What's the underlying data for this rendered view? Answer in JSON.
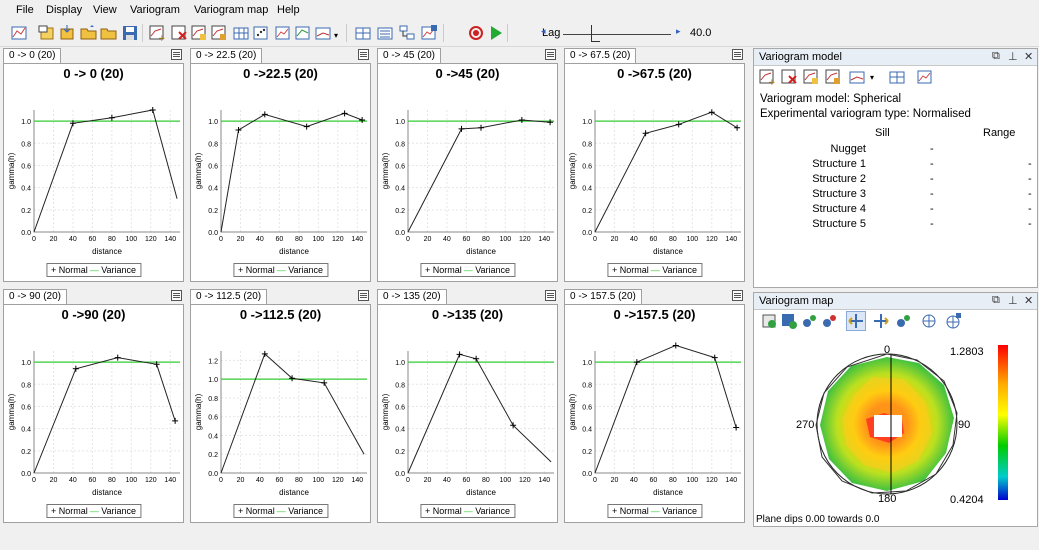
{
  "menu": [
    "File",
    "Display",
    "View",
    "Variogram",
    "Variogram map",
    "Help"
  ],
  "lag": {
    "label": "Lag",
    "value": "40.0"
  },
  "panels": [
    {
      "tab": "0 -> 0 (20)",
      "title": "0 -> 0 (20)",
      "ymax": 1.0,
      "yticks": [
        "0.0",
        "0.2",
        "0.4",
        "0.6",
        "0.8",
        "1.0"
      ],
      "points": [
        [
          40,
          0.98
        ],
        [
          80,
          1.03
        ],
        [
          122,
          1.1
        ]
      ],
      "line_end": [
        147,
        0.3
      ],
      "variance": 1.0
    },
    {
      "tab": "0 -> 22.5 (20)",
      "title": "0 ->22.5 (20)",
      "ymax": 1.0,
      "yticks": [
        "0.0",
        "0.2",
        "0.4",
        "0.6",
        "0.8",
        "1.0"
      ],
      "points": [
        [
          18,
          0.92
        ],
        [
          45,
          1.06
        ],
        [
          88,
          0.95
        ],
        [
          127,
          1.07
        ],
        [
          145,
          1.01
        ]
      ],
      "line_end": null,
      "variance": 1.0
    },
    {
      "tab": "0 -> 45 (20)",
      "title": "0 ->45 (20)",
      "ymax": 1.0,
      "yticks": [
        "0.0",
        "0.2",
        "0.4",
        "0.6",
        "0.8",
        "1.0"
      ],
      "points": [
        [
          55,
          0.93
        ],
        [
          75,
          0.94
        ],
        [
          117,
          1.01
        ],
        [
          146,
          0.99
        ]
      ],
      "line_end": null,
      "variance": 1.0
    },
    {
      "tab": "0 -> 67.5 (20)",
      "title": "0 ->67.5 (20)",
      "ymax": 1.0,
      "yticks": [
        "0.0",
        "0.2",
        "0.4",
        "0.6",
        "0.8",
        "1.0"
      ],
      "points": [
        [
          52,
          0.89
        ],
        [
          86,
          0.97
        ],
        [
          120,
          1.08
        ],
        [
          146,
          0.94
        ]
      ],
      "line_end": null,
      "variance": 1.0
    },
    {
      "tab": "0 -> 90 (20)",
      "title": "0 ->90 (20)",
      "ymax": 1.0,
      "yticks": [
        "0.0",
        "0.2",
        "0.4",
        "0.6",
        "0.8",
        "1.0"
      ],
      "points": [
        [
          43,
          0.94
        ],
        [
          86,
          1.04
        ],
        [
          126,
          0.98
        ],
        [
          145,
          0.47
        ]
      ],
      "line_end": null,
      "variance": 1.0
    },
    {
      "tab": "0 -> 112.5 (20)",
      "title": "0 ->112.5 (20)",
      "ymax": 1.2,
      "yticks": [
        "0.0",
        "0.2",
        "0.4",
        "0.6",
        "0.8",
        "1.0",
        "1.2"
      ],
      "points": [
        [
          45,
          1.27
        ],
        [
          73,
          1.01
        ],
        [
          106,
          0.96
        ]
      ],
      "line_end": [
        147,
        0.2
      ],
      "variance": 1.0
    },
    {
      "tab": "0 -> 135 (20)",
      "title": "0 ->135 (20)",
      "ymax": 1.0,
      "yticks": [
        "0.0",
        "0.2",
        "0.4",
        "0.6",
        "0.8",
        "1.0"
      ],
      "points": [
        [
          53,
          1.07
        ],
        [
          70,
          1.03
        ],
        [
          108,
          0.43
        ]
      ],
      "line_end": [
        147,
        0.1
      ],
      "variance": 1.0
    },
    {
      "tab": "0 -> 157.5 (20)",
      "title": "0 ->157.5 (20)",
      "ymax": 1.0,
      "yticks": [
        "0.0",
        "0.2",
        "0.4",
        "0.6",
        "0.8",
        "1.0"
      ],
      "points": [
        [
          43,
          1.0
        ],
        [
          83,
          1.15
        ],
        [
          123,
          1.04
        ],
        [
          145,
          0.41
        ]
      ],
      "line_end": null,
      "variance": 1.0
    }
  ],
  "chart_common": {
    "xlabel": "distance",
    "ylabel": "gamma(h)",
    "xticks": [
      "0",
      "20",
      "40",
      "60",
      "80",
      "100",
      "120",
      "140"
    ],
    "legend_normal": "Normal",
    "legend_variance": "Variance"
  },
  "variogram_model": {
    "title": "Variogram model",
    "model_line": "Variogram model: Spherical",
    "type_line": "Experimental variogram type: Normalised",
    "header_sill": "Sill",
    "header_range": "Range",
    "rows": [
      {
        "name": "Nugget",
        "sill": "-",
        "range": ""
      },
      {
        "name": "Structure 1",
        "sill": "-",
        "range": "-"
      },
      {
        "name": "Structure 2",
        "sill": "-",
        "range": "-"
      },
      {
        "name": "Structure 3",
        "sill": "-",
        "range": "-"
      },
      {
        "name": "Structure 4",
        "sill": "-",
        "range": "-"
      },
      {
        "name": "Structure 5",
        "sill": "-",
        "range": "-"
      }
    ]
  },
  "variogram_map": {
    "title": "Variogram map",
    "label_top": "0",
    "label_left": "270",
    "label_right": "90",
    "label_bottom": "180",
    "scale_max": "1.2803",
    "scale_min": "0.4204",
    "plane_dips": "Plane dips  0.00 towards   0.0"
  },
  "colors": {
    "variance_line": "#33cc33",
    "data_line": "#222222",
    "accent_red": "#cc2222",
    "accent_green": "#22aa33"
  }
}
